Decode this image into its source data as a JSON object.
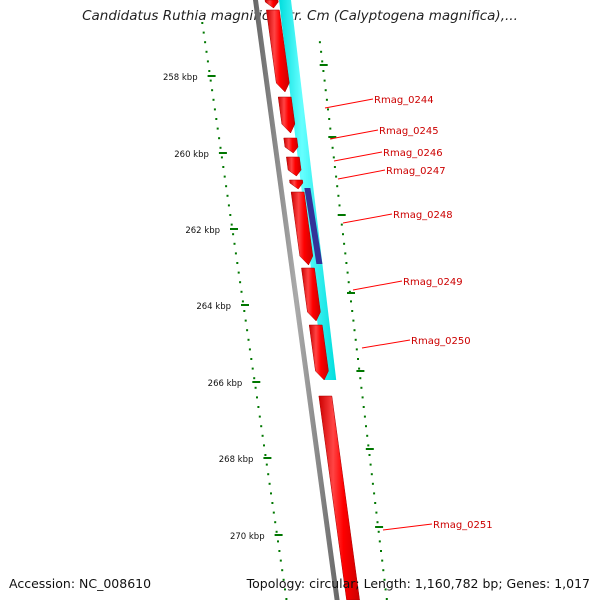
{
  "title": "Candidatus Ruthia magnifica str. Cm (Calyptogena magnifica),...",
  "accession": "Accession: NC_008610",
  "topology": "Topology: circular; Length: 1,160,782 bp; Genes: 1,017",
  "colors": {
    "gene_forward": "#ff0000",
    "gene_highlight": "#ff6666",
    "cds_band": "#00ffff",
    "special_feature": "#333399",
    "backbone": "#808080",
    "scale_ticks": "#007700",
    "label_text": "#cc0000"
  },
  "scale": {
    "labels": [
      "258 kbp",
      "260 kbp",
      "262 kbp",
      "264 kbp",
      "266 kbp",
      "268 kbp",
      "270 kbp"
    ]
  },
  "genes": [
    {
      "label": "Rmag_0244"
    },
    {
      "label": "Rmag_0245"
    },
    {
      "label": "Rmag_0246"
    },
    {
      "label": "Rmag_0247"
    },
    {
      "label": "Rmag_0248"
    },
    {
      "label": "Rmag_0249"
    },
    {
      "label": "Rmag_0250"
    },
    {
      "label": "Rmag_0251"
    }
  ]
}
